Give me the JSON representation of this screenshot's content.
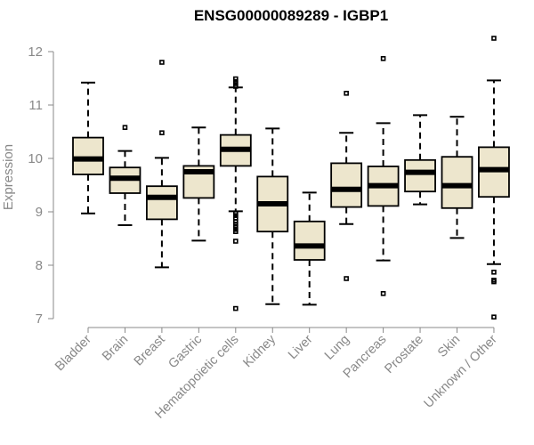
{
  "chart_data": {
    "type": "boxplot",
    "title": "ENSG00000089289 - IGBP1",
    "xlabel": "",
    "ylabel": "Expression",
    "ylim": [
      7,
      12.2
    ],
    "yticks": [
      7,
      8,
      9,
      10,
      11,
      12
    ],
    "box_color": "#ede6cd",
    "line_color": "#000000",
    "axis_color": "#888888",
    "categories": [
      {
        "name": "Bladder",
        "min": 8.97,
        "q1": 9.7,
        "median": 9.99,
        "q3": 10.39,
        "max": 11.42,
        "outliers": []
      },
      {
        "name": "Brain",
        "min": 8.75,
        "q1": 9.35,
        "median": 9.63,
        "q3": 9.83,
        "max": 10.14,
        "outliers": [
          10.58
        ]
      },
      {
        "name": "Breast",
        "min": 7.96,
        "q1": 8.86,
        "median": 9.27,
        "q3": 9.48,
        "max": 10.01,
        "outliers": [
          11.8,
          10.48
        ]
      },
      {
        "name": "Gastric",
        "min": 8.46,
        "q1": 9.26,
        "median": 9.75,
        "q3": 9.86,
        "max": 10.58,
        "outliers": []
      },
      {
        "name": "Hematopoietic cells",
        "min": 9.01,
        "q1": 9.86,
        "median": 10.17,
        "q3": 10.44,
        "max": 11.33,
        "outliers": [
          11.49,
          11.44,
          11.4,
          11.35,
          8.97,
          8.93,
          8.88,
          8.82,
          8.77,
          8.72,
          8.67,
          8.63,
          8.45,
          7.19
        ]
      },
      {
        "name": "Kidney",
        "min": 7.27,
        "q1": 8.63,
        "median": 9.15,
        "q3": 9.66,
        "max": 10.56,
        "outliers": []
      },
      {
        "name": "Liver",
        "min": 7.26,
        "q1": 8.1,
        "median": 8.36,
        "q3": 8.82,
        "max": 9.36,
        "outliers": []
      },
      {
        "name": "Lung",
        "min": 8.77,
        "q1": 9.09,
        "median": 9.42,
        "q3": 9.91,
        "max": 10.48,
        "outliers": [
          11.22,
          7.75
        ]
      },
      {
        "name": "Pancreas",
        "min": 8.09,
        "q1": 9.11,
        "median": 9.49,
        "q3": 9.85,
        "max": 10.66,
        "outliers": [
          11.87,
          7.47
        ]
      },
      {
        "name": "Prostate",
        "min": 9.14,
        "q1": 9.38,
        "median": 9.74,
        "q3": 9.97,
        "max": 10.81,
        "outliers": []
      },
      {
        "name": "Skin",
        "min": 8.51,
        "q1": 9.07,
        "median": 9.49,
        "q3": 10.03,
        "max": 10.78,
        "outliers": []
      },
      {
        "name": "Unknown / Other",
        "min": 8.02,
        "q1": 9.28,
        "median": 9.79,
        "q3": 10.21,
        "max": 11.46,
        "outliers": [
          12.25,
          7.87,
          7.72,
          7.69,
          7.03
        ]
      }
    ]
  }
}
